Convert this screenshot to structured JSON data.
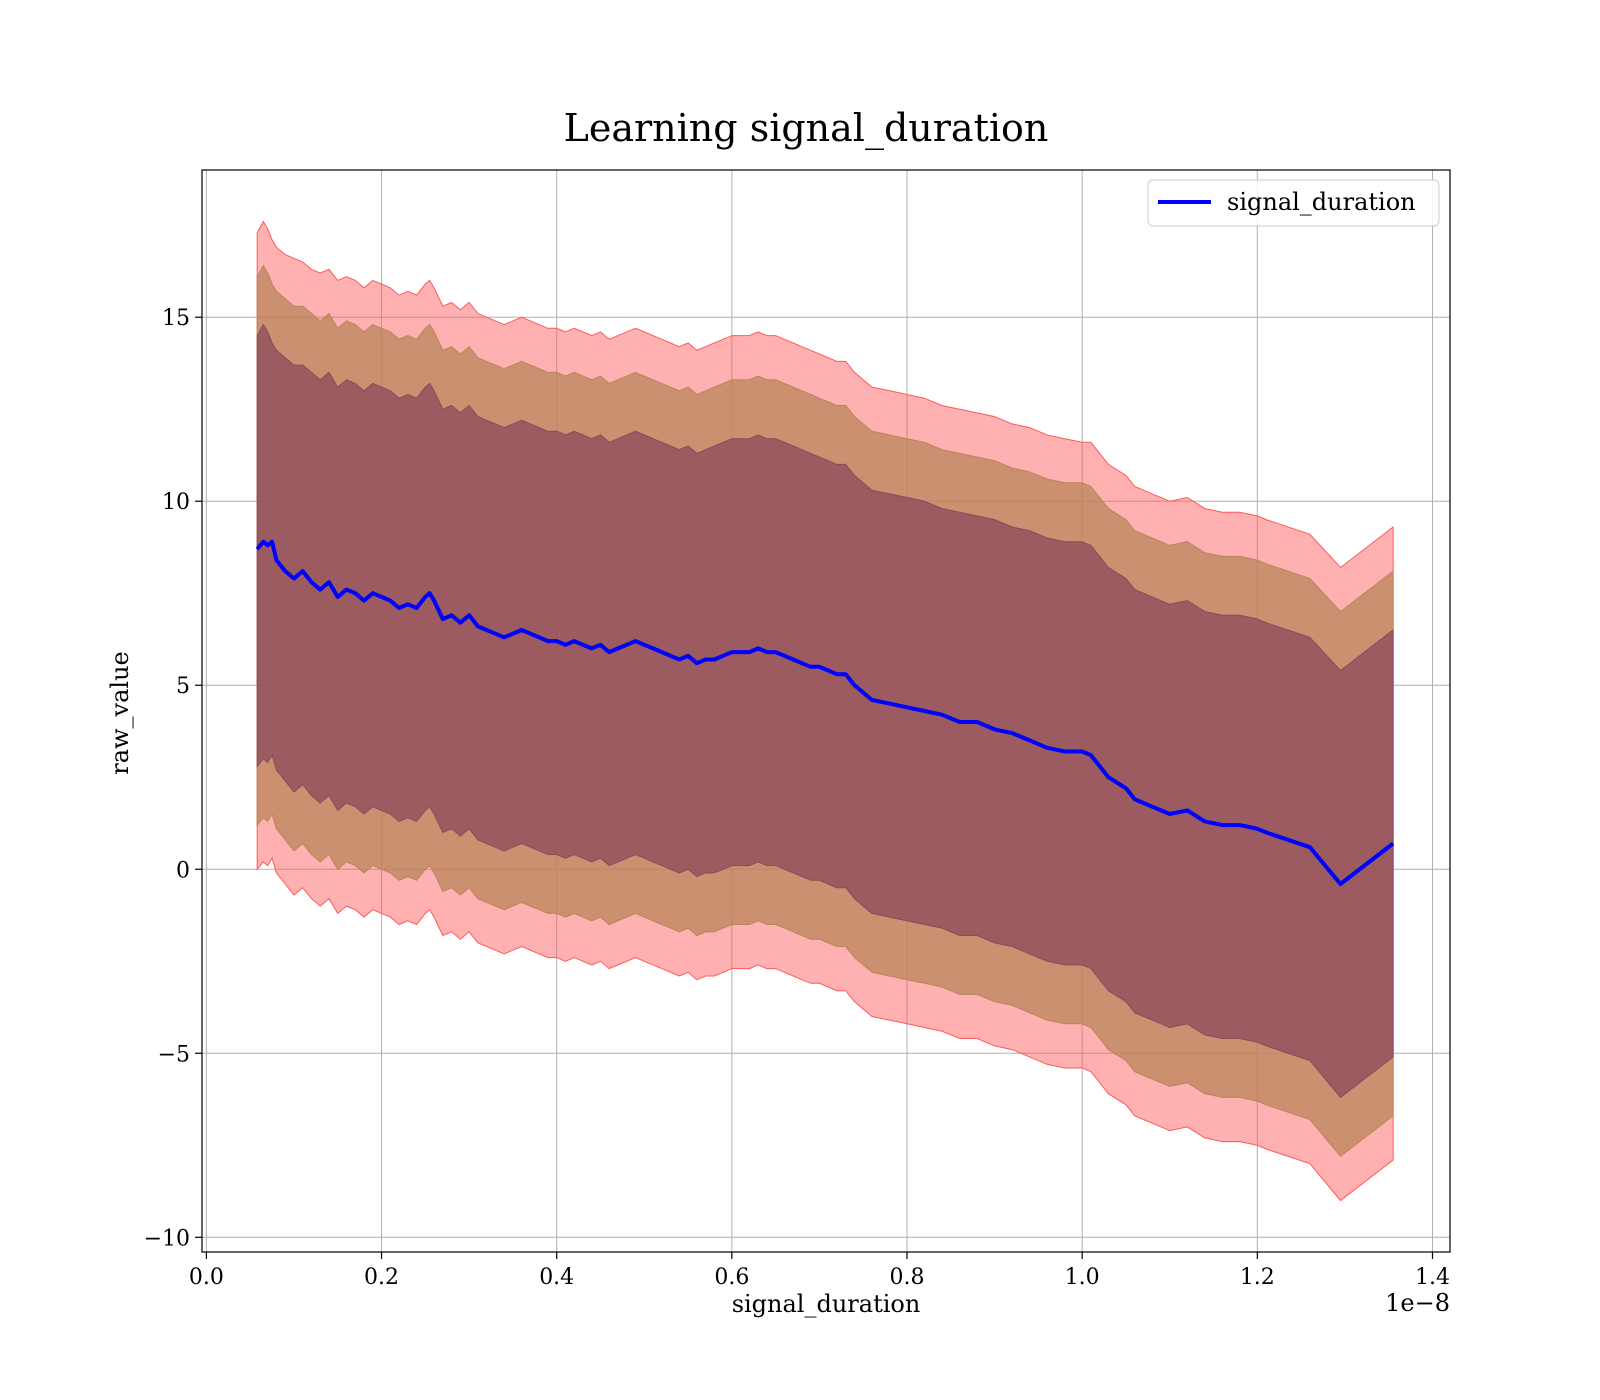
{
  "chart_data": {
    "type": "line",
    "title": "Learning signal_duration",
    "xlabel": "signal_duration",
    "ylabel": "raw_value",
    "x_offset_label": "1e−8",
    "xlim": [
      -0.005,
      1.42
    ],
    "ylim": [
      -10.4,
      19.0
    ],
    "x_ticks": [
      0.0,
      0.2,
      0.4,
      0.6,
      0.8,
      1.0,
      1.2,
      1.4
    ],
    "x_tick_labels": [
      "0.0",
      "0.2",
      "0.4",
      "0.6",
      "0.8",
      "1.0",
      "1.2",
      "1.4"
    ],
    "y_ticks": [
      -10,
      -5,
      0,
      5,
      10,
      15
    ],
    "y_tick_labels": [
      "−10",
      "−5",
      "0",
      "5",
      "10",
      "15"
    ],
    "grid": true,
    "legend_position": "top-right",
    "colors": {
      "line": "#0000ff",
      "band_outer": "#ff5a5a",
      "band_middle": "#b8855a",
      "band_inner": "#8b4a5c"
    },
    "series": [
      {
        "name": "signal_duration",
        "x": [
          0.058,
          0.065,
          0.07,
          0.075,
          0.08,
          0.09,
          0.1,
          0.11,
          0.12,
          0.13,
          0.14,
          0.15,
          0.16,
          0.17,
          0.18,
          0.19,
          0.2,
          0.21,
          0.22,
          0.23,
          0.24,
          0.25,
          0.255,
          0.26,
          0.27,
          0.28,
          0.29,
          0.3,
          0.31,
          0.32,
          0.33,
          0.34,
          0.35,
          0.36,
          0.37,
          0.38,
          0.39,
          0.4,
          0.41,
          0.42,
          0.43,
          0.44,
          0.45,
          0.46,
          0.47,
          0.48,
          0.49,
          0.5,
          0.51,
          0.52,
          0.53,
          0.54,
          0.55,
          0.56,
          0.57,
          0.58,
          0.59,
          0.6,
          0.61,
          0.62,
          0.63,
          0.64,
          0.65,
          0.66,
          0.67,
          0.68,
          0.69,
          0.7,
          0.71,
          0.72,
          0.73,
          0.74,
          0.75,
          0.76,
          0.78,
          0.8,
          0.82,
          0.84,
          0.86,
          0.88,
          0.9,
          0.92,
          0.94,
          0.96,
          0.98,
          1.0,
          1.01,
          1.02,
          1.03,
          1.05,
          1.06,
          1.08,
          1.1,
          1.12,
          1.14,
          1.16,
          1.18,
          1.2,
          1.21,
          1.26,
          1.295,
          1.355
        ],
        "y": [
          8.7,
          8.9,
          8.8,
          8.9,
          8.4,
          8.1,
          7.9,
          8.1,
          7.8,
          7.6,
          7.8,
          7.4,
          7.6,
          7.5,
          7.3,
          7.5,
          7.4,
          7.3,
          7.1,
          7.2,
          7.1,
          7.4,
          7.5,
          7.3,
          6.8,
          6.9,
          6.7,
          6.9,
          6.6,
          6.5,
          6.4,
          6.3,
          6.4,
          6.5,
          6.4,
          6.3,
          6.2,
          6.2,
          6.1,
          6.2,
          6.1,
          6.0,
          6.1,
          5.9,
          6.0,
          6.1,
          6.2,
          6.1,
          6.0,
          5.9,
          5.8,
          5.7,
          5.8,
          5.6,
          5.7,
          5.7,
          5.8,
          5.9,
          5.9,
          5.9,
          6.0,
          5.9,
          5.9,
          5.8,
          5.7,
          5.6,
          5.5,
          5.5,
          5.4,
          5.3,
          5.3,
          5.0,
          4.8,
          4.6,
          4.5,
          4.4,
          4.3,
          4.2,
          4.0,
          4.0,
          3.8,
          3.7,
          3.5,
          3.3,
          3.2,
          3.2,
          3.1,
          2.8,
          2.5,
          2.2,
          1.9,
          1.7,
          1.5,
          1.6,
          1.3,
          1.2,
          1.2,
          1.1,
          1.0,
          0.6,
          -0.4,
          0.7
        ]
      }
    ],
    "bands": [
      {
        "color": "#ff5a5a",
        "upper": [
          17.3,
          17.6,
          17.4,
          17.1,
          16.9,
          16.7,
          16.6,
          16.5,
          16.3,
          16.2,
          16.3,
          16.0,
          16.1,
          16.0,
          15.8,
          16.0,
          15.9,
          15.8,
          15.6,
          15.7,
          15.6,
          15.9,
          16.0,
          15.8,
          15.3,
          15.4,
          15.2,
          15.4,
          15.1,
          15.0,
          14.9,
          14.8,
          14.9,
          15.0,
          14.9,
          14.8,
          14.7,
          14.7,
          14.6,
          14.7,
          14.6,
          14.5,
          14.6,
          14.4,
          14.5,
          14.6,
          14.7,
          14.6,
          14.5,
          14.4,
          14.3,
          14.2,
          14.3,
          14.1,
          14.2,
          14.3,
          14.4,
          14.5,
          14.5,
          14.5,
          14.6,
          14.5,
          14.5,
          14.4,
          14.3,
          14.2,
          14.1,
          14.0,
          13.9,
          13.8,
          13.8,
          13.5,
          13.3,
          13.1,
          13.0,
          12.9,
          12.8,
          12.6,
          12.5,
          12.4,
          12.3,
          12.1,
          12.0,
          11.8,
          11.7,
          11.6,
          11.6,
          11.3,
          11.0,
          10.7,
          10.4,
          10.2,
          10.0,
          10.1,
          9.8,
          9.7,
          9.7,
          9.6,
          9.5,
          9.1,
          8.2,
          9.3
        ],
        "lower": [
          0.0,
          0.2,
          0.1,
          0.3,
          -0.1,
          -0.4,
          -0.7,
          -0.5,
          -0.8,
          -1.0,
          -0.8,
          -1.2,
          -1.0,
          -1.1,
          -1.3,
          -1.1,
          -1.2,
          -1.3,
          -1.5,
          -1.4,
          -1.5,
          -1.2,
          -1.1,
          -1.3,
          -1.8,
          -1.7,
          -1.9,
          -1.7,
          -2.0,
          -2.1,
          -2.2,
          -2.3,
          -2.2,
          -2.1,
          -2.2,
          -2.3,
          -2.4,
          -2.4,
          -2.5,
          -2.4,
          -2.5,
          -2.6,
          -2.5,
          -2.7,
          -2.6,
          -2.5,
          -2.4,
          -2.5,
          -2.6,
          -2.7,
          -2.8,
          -2.9,
          -2.8,
          -3.0,
          -2.9,
          -2.9,
          -2.8,
          -2.7,
          -2.7,
          -2.7,
          -2.6,
          -2.7,
          -2.7,
          -2.8,
          -2.9,
          -3.0,
          -3.1,
          -3.1,
          -3.2,
          -3.3,
          -3.3,
          -3.6,
          -3.8,
          -4.0,
          -4.1,
          -4.2,
          -4.3,
          -4.4,
          -4.6,
          -4.6,
          -4.8,
          -4.9,
          -5.1,
          -5.3,
          -5.4,
          -5.4,
          -5.5,
          -5.8,
          -6.1,
          -6.4,
          -6.7,
          -6.9,
          -7.1,
          -7.0,
          -7.3,
          -7.4,
          -7.4,
          -7.5,
          -7.6,
          -8.0,
          -9.0,
          -7.9
        ]
      },
      {
        "color": "#b8855a",
        "upper": [
          16.1,
          16.4,
          16.2,
          15.9,
          15.7,
          15.5,
          15.3,
          15.3,
          15.1,
          14.9,
          15.1,
          14.7,
          14.9,
          14.8,
          14.6,
          14.8,
          14.7,
          14.6,
          14.4,
          14.5,
          14.4,
          14.7,
          14.8,
          14.6,
          14.1,
          14.2,
          14.0,
          14.2,
          13.9,
          13.8,
          13.7,
          13.6,
          13.7,
          13.8,
          13.7,
          13.6,
          13.5,
          13.5,
          13.4,
          13.5,
          13.4,
          13.3,
          13.4,
          13.2,
          13.3,
          13.4,
          13.5,
          13.4,
          13.3,
          13.2,
          13.1,
          13.0,
          13.1,
          12.9,
          13.0,
          13.1,
          13.2,
          13.3,
          13.3,
          13.3,
          13.4,
          13.3,
          13.3,
          13.2,
          13.1,
          13.0,
          12.9,
          12.8,
          12.7,
          12.6,
          12.6,
          12.3,
          12.1,
          11.9,
          11.8,
          11.7,
          11.6,
          11.4,
          11.3,
          11.2,
          11.1,
          10.9,
          10.8,
          10.6,
          10.5,
          10.5,
          10.4,
          10.1,
          9.8,
          9.5,
          9.2,
          9.0,
          8.8,
          8.9,
          8.6,
          8.5,
          8.5,
          8.4,
          8.3,
          7.9,
          7.0,
          8.1
        ],
        "lower": [
          1.2,
          1.4,
          1.3,
          1.5,
          1.1,
          0.8,
          0.5,
          0.7,
          0.4,
          0.2,
          0.4,
          0.0,
          0.2,
          0.1,
          -0.1,
          0.1,
          0.0,
          -0.1,
          -0.3,
          -0.2,
          -0.3,
          0.0,
          0.1,
          -0.1,
          -0.6,
          -0.5,
          -0.7,
          -0.5,
          -0.8,
          -0.9,
          -1.0,
          -1.1,
          -1.0,
          -0.9,
          -1.0,
          -1.1,
          -1.2,
          -1.2,
          -1.3,
          -1.2,
          -1.3,
          -1.4,
          -1.3,
          -1.5,
          -1.4,
          -1.3,
          -1.2,
          -1.3,
          -1.4,
          -1.5,
          -1.6,
          -1.7,
          -1.6,
          -1.8,
          -1.7,
          -1.7,
          -1.6,
          -1.5,
          -1.5,
          -1.5,
          -1.4,
          -1.5,
          -1.5,
          -1.6,
          -1.7,
          -1.8,
          -1.9,
          -1.9,
          -2.0,
          -2.1,
          -2.1,
          -2.4,
          -2.6,
          -2.8,
          -2.9,
          -3.0,
          -3.1,
          -3.2,
          -3.4,
          -3.4,
          -3.6,
          -3.7,
          -3.9,
          -4.1,
          -4.2,
          -4.2,
          -4.3,
          -4.6,
          -4.9,
          -5.2,
          -5.5,
          -5.7,
          -5.9,
          -5.8,
          -6.1,
          -6.2,
          -6.2,
          -6.3,
          -6.4,
          -6.8,
          -7.8,
          -6.7
        ]
      },
      {
        "color": "#8b4a5c",
        "upper": [
          14.5,
          14.8,
          14.6,
          14.3,
          14.1,
          13.9,
          13.7,
          13.7,
          13.5,
          13.3,
          13.5,
          13.1,
          13.3,
          13.2,
          13.0,
          13.2,
          13.1,
          13.0,
          12.8,
          12.9,
          12.8,
          13.1,
          13.2,
          13.0,
          12.5,
          12.6,
          12.4,
          12.6,
          12.3,
          12.2,
          12.1,
          12.0,
          12.1,
          12.2,
          12.1,
          12.0,
          11.9,
          11.9,
          11.8,
          11.9,
          11.8,
          11.7,
          11.8,
          11.6,
          11.7,
          11.8,
          11.9,
          11.8,
          11.7,
          11.6,
          11.5,
          11.4,
          11.5,
          11.3,
          11.4,
          11.5,
          11.6,
          11.7,
          11.7,
          11.7,
          11.8,
          11.7,
          11.7,
          11.6,
          11.5,
          11.4,
          11.3,
          11.2,
          11.1,
          11.0,
          11.0,
          10.7,
          10.5,
          10.3,
          10.2,
          10.1,
          10.0,
          9.8,
          9.7,
          9.6,
          9.5,
          9.3,
          9.2,
          9.0,
          8.9,
          8.9,
          8.8,
          8.5,
          8.2,
          7.9,
          7.6,
          7.4,
          7.2,
          7.3,
          7.0,
          6.9,
          6.9,
          6.8,
          6.7,
          6.3,
          5.4,
          6.5
        ],
        "lower": [
          2.8,
          3.0,
          2.9,
          3.1,
          2.7,
          2.4,
          2.1,
          2.3,
          2.0,
          1.8,
          2.0,
          1.6,
          1.8,
          1.7,
          1.5,
          1.7,
          1.6,
          1.5,
          1.3,
          1.4,
          1.3,
          1.6,
          1.7,
          1.5,
          1.0,
          1.1,
          0.9,
          1.1,
          0.8,
          0.7,
          0.6,
          0.5,
          0.6,
          0.7,
          0.6,
          0.5,
          0.4,
          0.4,
          0.3,
          0.4,
          0.3,
          0.2,
          0.3,
          0.1,
          0.2,
          0.3,
          0.4,
          0.3,
          0.2,
          0.1,
          0.0,
          -0.1,
          0.0,
          -0.2,
          -0.1,
          -0.1,
          0.0,
          0.1,
          0.1,
          0.1,
          0.2,
          0.1,
          0.1,
          0.0,
          -0.1,
          -0.2,
          -0.3,
          -0.3,
          -0.4,
          -0.5,
          -0.5,
          -0.8,
          -1.0,
          -1.2,
          -1.3,
          -1.4,
          -1.5,
          -1.6,
          -1.8,
          -1.8,
          -2.0,
          -2.1,
          -2.3,
          -2.5,
          -2.6,
          -2.6,
          -2.7,
          -3.0,
          -3.3,
          -3.6,
          -3.9,
          -4.1,
          -4.3,
          -4.2,
          -4.5,
          -4.6,
          -4.6,
          -4.7,
          -4.8,
          -5.2,
          -6.2,
          -5.1
        ]
      }
    ]
  }
}
